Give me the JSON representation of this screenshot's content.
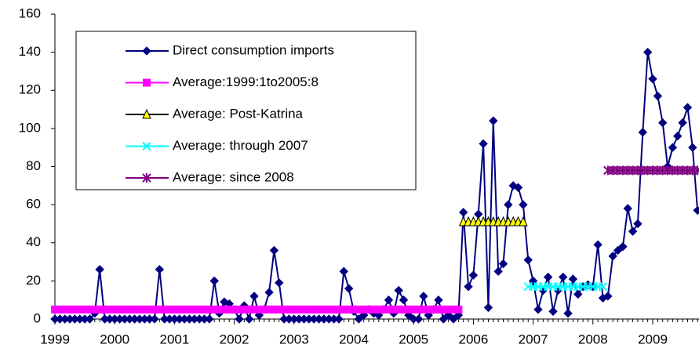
{
  "chart_data": {
    "type": "line",
    "categories": [
      "1999",
      null,
      null,
      null,
      null,
      null,
      null,
      null,
      null,
      null,
      null,
      null,
      "2000",
      null,
      null,
      null,
      null,
      null,
      null,
      null,
      null,
      null,
      null,
      null,
      "2001",
      null,
      null,
      null,
      null,
      null,
      null,
      null,
      null,
      null,
      null,
      null,
      "2002",
      null,
      null,
      null,
      null,
      null,
      null,
      null,
      null,
      null,
      null,
      null,
      "2003",
      null,
      null,
      null,
      null,
      null,
      null,
      null,
      null,
      null,
      null,
      null,
      "2004",
      null,
      null,
      null,
      null,
      null,
      null,
      null,
      null,
      null,
      null,
      null,
      "2005",
      null,
      null,
      null,
      null,
      null,
      null,
      null,
      null,
      null,
      null,
      null,
      "2006",
      null,
      null,
      null,
      null,
      null,
      null,
      null,
      null,
      null,
      null,
      null,
      "2007",
      null,
      null,
      null,
      null,
      null,
      null,
      null,
      null,
      null,
      null,
      null,
      "2008",
      null,
      null,
      null,
      null,
      null,
      null,
      null,
      null,
      null,
      null,
      null,
      "2009",
      null,
      null,
      null,
      null,
      null,
      null,
      null,
      null,
      null
    ],
    "series": [
      {
        "name": "Direct consumption imports",
        "color": "#000080",
        "line_color": "#000080",
        "marker": "diamond",
        "values": [
          0,
          0,
          0,
          0,
          0,
          0,
          0,
          0,
          3,
          26,
          0,
          0,
          0,
          0,
          0,
          0,
          0,
          0,
          0,
          0,
          0,
          26,
          0,
          0,
          0,
          0,
          0,
          0,
          0,
          0,
          0,
          0,
          20,
          3,
          9,
          8,
          5,
          0,
          7,
          0,
          12,
          2,
          5,
          14,
          36,
          19,
          0,
          0,
          0,
          0,
          0,
          0,
          0,
          0,
          0,
          0,
          0,
          0,
          25,
          16,
          4,
          0,
          2,
          5,
          3,
          2,
          5,
          10,
          3,
          15,
          10,
          2,
          0,
          0,
          12,
          2,
          5,
          10,
          0,
          2,
          0,
          2,
          56,
          17,
          23,
          55,
          92,
          6,
          104,
          25,
          29,
          60,
          70,
          69,
          60,
          31,
          20,
          5,
          15,
          22,
          4,
          15,
          22,
          3,
          21,
          13,
          17,
          18,
          17,
          39,
          11,
          12,
          33,
          36,
          38,
          58,
          46,
          50,
          98,
          140,
          126,
          117,
          103,
          80,
          90,
          96,
          103,
          111,
          90,
          57
        ]
      },
      {
        "name": "Average:1999:1to2005:8",
        "color": "#ff00ff",
        "line_color": "#ff00ff",
        "marker": "square",
        "values": [
          5,
          5,
          5,
          5,
          5,
          5,
          5,
          5,
          5,
          5,
          5,
          5,
          5,
          5,
          5,
          5,
          5,
          5,
          5,
          5,
          5,
          5,
          5,
          5,
          5,
          5,
          5,
          5,
          5,
          5,
          5,
          5,
          5,
          5,
          5,
          5,
          5,
          5,
          5,
          5,
          5,
          5,
          5,
          5,
          5,
          5,
          5,
          5,
          5,
          5,
          5,
          5,
          5,
          5,
          5,
          5,
          5,
          5,
          5,
          5,
          5,
          5,
          5,
          5,
          5,
          5,
          5,
          5,
          5,
          5,
          5,
          5,
          5,
          5,
          5,
          5,
          5,
          5,
          5,
          5,
          5,
          5,
          null,
          null,
          null,
          null,
          null,
          null,
          null,
          null,
          null,
          null,
          null,
          null,
          null,
          null,
          null,
          null,
          null,
          null,
          null,
          null,
          null,
          null,
          null,
          null,
          null,
          null,
          null,
          null,
          null,
          null,
          null,
          null,
          null,
          null,
          null,
          null,
          null,
          null,
          null,
          null,
          null,
          null,
          null,
          null,
          null,
          null,
          null,
          null
        ]
      },
      {
        "name": "Average: Post-Katrina",
        "color": "#ffff00",
        "line_color": "#000000",
        "marker": "triangle",
        "values": [
          null,
          null,
          null,
          null,
          null,
          null,
          null,
          null,
          null,
          null,
          null,
          null,
          null,
          null,
          null,
          null,
          null,
          null,
          null,
          null,
          null,
          null,
          null,
          null,
          null,
          null,
          null,
          null,
          null,
          null,
          null,
          null,
          null,
          null,
          null,
          null,
          null,
          null,
          null,
          null,
          null,
          null,
          null,
          null,
          null,
          null,
          null,
          null,
          null,
          null,
          null,
          null,
          null,
          null,
          null,
          null,
          null,
          null,
          null,
          null,
          null,
          null,
          null,
          null,
          null,
          null,
          null,
          null,
          null,
          null,
          null,
          null,
          null,
          null,
          null,
          null,
          null,
          null,
          null,
          null,
          null,
          null,
          51,
          51,
          51,
          51,
          51,
          51,
          51,
          51,
          51,
          51,
          51,
          51,
          51,
          null,
          null,
          null,
          null,
          null,
          null,
          null,
          null,
          null,
          null,
          null,
          null,
          null,
          null,
          null,
          null,
          null,
          null,
          null,
          null,
          null,
          null,
          null,
          null,
          null,
          null,
          null,
          null,
          null,
          null,
          null,
          null,
          null,
          null,
          null
        ]
      },
      {
        "name": "Average: through 2007",
        "color": "#00ffff",
        "line_color": "#00ffff",
        "marker": "x",
        "values": [
          null,
          null,
          null,
          null,
          null,
          null,
          null,
          null,
          null,
          null,
          null,
          null,
          null,
          null,
          null,
          null,
          null,
          null,
          null,
          null,
          null,
          null,
          null,
          null,
          null,
          null,
          null,
          null,
          null,
          null,
          null,
          null,
          null,
          null,
          null,
          null,
          null,
          null,
          null,
          null,
          null,
          null,
          null,
          null,
          null,
          null,
          null,
          null,
          null,
          null,
          null,
          null,
          null,
          null,
          null,
          null,
          null,
          null,
          null,
          null,
          null,
          null,
          null,
          null,
          null,
          null,
          null,
          null,
          null,
          null,
          null,
          null,
          null,
          null,
          null,
          null,
          null,
          null,
          null,
          null,
          null,
          null,
          null,
          null,
          null,
          null,
          null,
          null,
          null,
          null,
          null,
          null,
          null,
          null,
          null,
          17,
          17,
          17,
          17,
          17,
          17,
          17,
          17,
          17,
          17,
          17,
          17,
          17,
          17,
          17,
          17,
          null,
          null,
          null,
          null,
          null,
          null,
          null,
          null,
          null,
          null,
          null,
          null,
          null,
          null,
          null,
          null,
          null,
          null,
          null
        ]
      },
      {
        "name": "Average: since 2008",
        "color": "#800080",
        "line_color": "#800080",
        "marker": "asterisk",
        "values": [
          null,
          null,
          null,
          null,
          null,
          null,
          null,
          null,
          null,
          null,
          null,
          null,
          null,
          null,
          null,
          null,
          null,
          null,
          null,
          null,
          null,
          null,
          null,
          null,
          null,
          null,
          null,
          null,
          null,
          null,
          null,
          null,
          null,
          null,
          null,
          null,
          null,
          null,
          null,
          null,
          null,
          null,
          null,
          null,
          null,
          null,
          null,
          null,
          null,
          null,
          null,
          null,
          null,
          null,
          null,
          null,
          null,
          null,
          null,
          null,
          null,
          null,
          null,
          null,
          null,
          null,
          null,
          null,
          null,
          null,
          null,
          null,
          null,
          null,
          null,
          null,
          null,
          null,
          null,
          null,
          null,
          null,
          null,
          null,
          null,
          null,
          null,
          null,
          null,
          null,
          null,
          null,
          null,
          null,
          null,
          null,
          null,
          null,
          null,
          null,
          null,
          null,
          null,
          null,
          null,
          null,
          null,
          null,
          null,
          null,
          null,
          78,
          78,
          78,
          78,
          78,
          78,
          78,
          78,
          78,
          78,
          78,
          78,
          78,
          78,
          78,
          78,
          78,
          78,
          78
        ]
      }
    ],
    "ylim": [
      0,
      160
    ],
    "yticks": [
      0,
      20,
      40,
      60,
      80,
      100,
      120,
      140,
      160
    ],
    "grid": false,
    "legend": "upper-left"
  }
}
